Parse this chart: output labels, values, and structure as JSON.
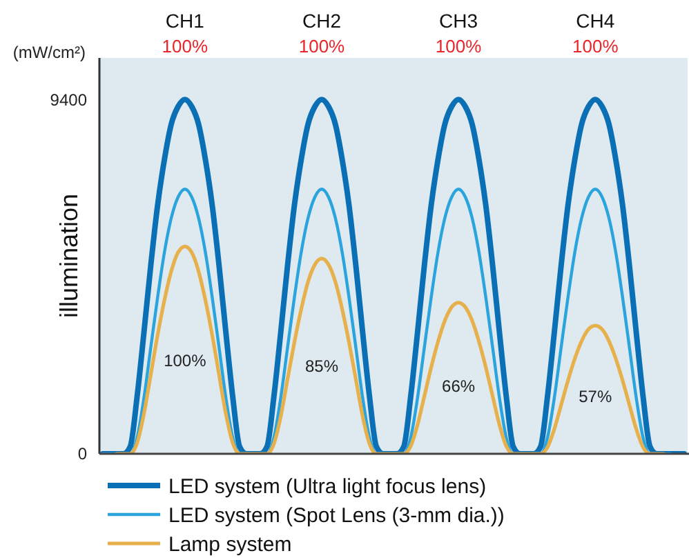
{
  "chart_data": {
    "type": "line",
    "ylabel": "illumination",
    "ylim": [
      0,
      10500
    ],
    "yticks": [
      0,
      9400
    ],
    "tick_labels": "y",
    "grid": false,
    "legend": "bottom",
    "line_style": "solid",
    "annotations": [
      "(mW/cm²)",
      "CH1",
      "100%",
      "CH2",
      "100%",
      "CH3",
      "100%",
      "CH4",
      "100%",
      "100%",
      "85%",
      "66%",
      "57%"
    ],
    "categories": [
      null,
      null,
      null,
      null,
      null,
      null,
      null,
      null,
      null,
      null,
      null,
      null,
      null,
      null,
      null,
      null,
      null,
      null,
      null,
      null,
      null,
      null,
      null,
      null,
      null,
      null,
      null,
      null,
      null,
      null,
      null,
      null,
      null,
      null,
      null,
      null,
      null,
      null,
      null,
      null,
      null,
      null,
      null,
      null,
      null,
      null,
      null,
      null,
      null,
      null,
      null,
      null,
      null,
      null,
      null,
      null,
      null,
      null,
      null,
      null,
      null,
      null,
      null,
      null,
      null,
      null,
      null,
      null,
      null,
      null,
      null,
      null,
      null,
      null,
      null,
      null,
      null,
      null,
      null,
      null,
      null,
      null,
      null,
      null,
      null,
      null
    ],
    "series": [
      {
        "name": "LED system (Ultra light focus lens)",
        "color": "#0a6fb5",
        "values": [
          0,
          0,
          0,
          0,
          190,
          1500,
          3200,
          4980,
          6580,
          7800,
          8740,
          9210,
          9400,
          9210,
          8740,
          7800,
          6580,
          4980,
          3200,
          1500,
          190,
          0,
          0,
          0,
          190,
          1500,
          3200,
          4980,
          6580,
          7800,
          8740,
          9210,
          9400,
          9210,
          8740,
          7800,
          6580,
          4980,
          3200,
          1500,
          190,
          0,
          0,
          0,
          190,
          1500,
          3200,
          4980,
          6580,
          7800,
          8740,
          9210,
          9400,
          9210,
          8740,
          7800,
          6580,
          4980,
          3200,
          1500,
          190,
          0,
          0,
          0,
          190,
          1500,
          3200,
          4980,
          6580,
          7800,
          8740,
          9210,
          9400,
          9210,
          8740,
          7800,
          6580,
          4980,
          3200,
          1500,
          190,
          0,
          0,
          0,
          0,
          0
        ]
      },
      {
        "name": "LED system (Spot Lens (3-mm dia.))",
        "color": "#2ba4dd",
        "values": [
          0,
          0,
          0,
          0,
          0,
          420,
          1470,
          2810,
          4140,
          5340,
          6250,
          6810,
          7020,
          6810,
          6250,
          5340,
          4140,
          2810,
          1470,
          420,
          0,
          0,
          0,
          0,
          0,
          420,
          1470,
          2810,
          4140,
          5340,
          6250,
          6810,
          7020,
          6810,
          6250,
          5340,
          4140,
          2810,
          1470,
          420,
          0,
          0,
          0,
          0,
          0,
          420,
          1470,
          2810,
          4140,
          5340,
          6250,
          6810,
          7020,
          6810,
          6250,
          5340,
          4140,
          2810,
          1470,
          420,
          0,
          0,
          0,
          0,
          0,
          420,
          1470,
          2810,
          4140,
          5340,
          6250,
          6810,
          7020,
          6810,
          6250,
          5340,
          4140,
          2810,
          1470,
          420,
          0,
          0,
          0,
          0,
          null,
          null
        ]
      },
      {
        "name": "Lamp system",
        "color": "#e6b04c",
        "values": [
          null,
          null,
          0,
          0,
          0,
          280,
          1050,
          2090,
          3140,
          4070,
          4840,
          5340,
          5500,
          5340,
          4840,
          4070,
          3140,
          2090,
          1050,
          280,
          0,
          0,
          0,
          0,
          0,
          260,
          980,
          1970,
          2950,
          3830,
          4560,
          5020,
          5180,
          5020,
          4560,
          3830,
          2950,
          1970,
          980,
          260,
          0,
          0,
          0,
          0,
          0,
          200,
          760,
          1520,
          2290,
          2970,
          3530,
          3890,
          4010,
          3890,
          3530,
          2970,
          2290,
          1520,
          760,
          200,
          0,
          0,
          0,
          0,
          0,
          170,
          650,
          1290,
          1940,
          2520,
          2990,
          3300,
          3400,
          3300,
          2990,
          2520,
          1940,
          1290,
          650,
          170,
          0,
          0,
          0,
          null,
          null,
          null
        ]
      }
    ]
  }
}
